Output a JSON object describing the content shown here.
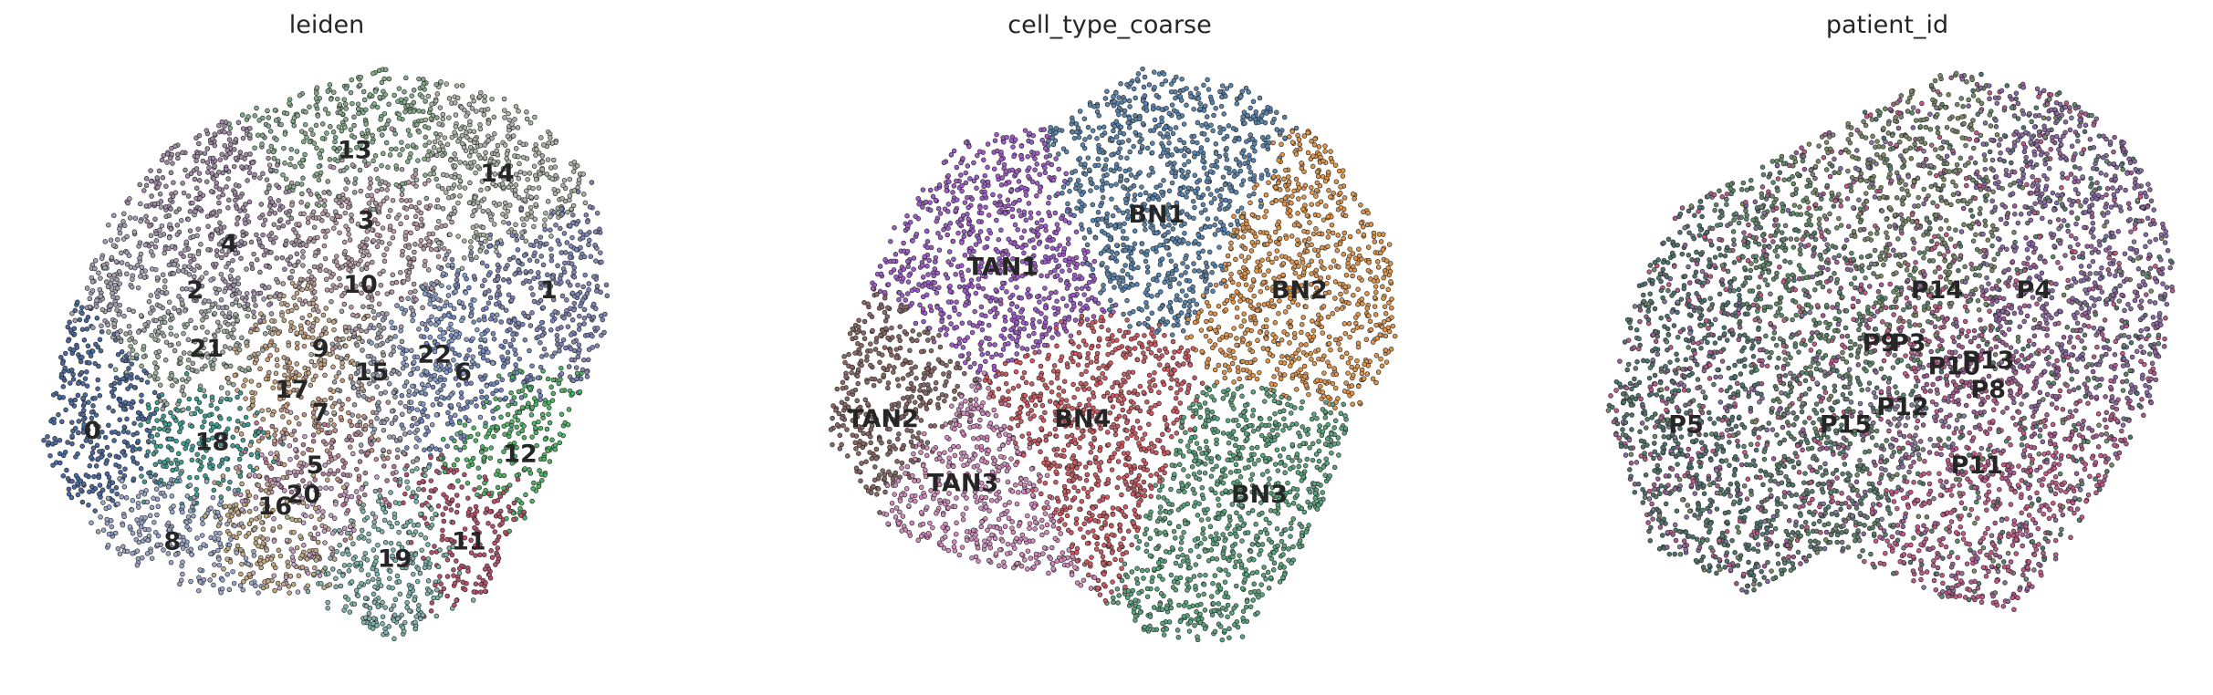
{
  "chart_data": [
    {
      "type": "scatter",
      "title": "leiden",
      "colors": {
        "0": "#4a6aa0",
        "1": "#7f86b5",
        "2": "#a7a0b5",
        "3": "#b79ba8",
        "4": "#a08aa5",
        "5": "#b07c94",
        "6": "#7388c0",
        "7": "#c09080",
        "8": "#9aa7c8",
        "9": "#c4a88a",
        "10": "#b49aa4",
        "11": "#b8526c",
        "12": "#4fb463",
        "13": "#85ac8b",
        "14": "#a9b3a6",
        "15": "#9a9fb0",
        "16": "#c3a882",
        "17": "#caa37c",
        "18": "#3f9e93",
        "19": "#7fb5ad",
        "20": "#c8a0c4",
        "21": "#9dae9e",
        "22": "#8aa0cc"
      },
      "clusters": [
        {
          "label": "0",
          "x": 0.09,
          "y": 0.62
        },
        {
          "label": "1",
          "x": 0.89,
          "y": 0.38
        },
        {
          "label": "2",
          "x": 0.27,
          "y": 0.38
        },
        {
          "label": "3",
          "x": 0.57,
          "y": 0.26
        },
        {
          "label": "4",
          "x": 0.33,
          "y": 0.3
        },
        {
          "label": "5",
          "x": 0.48,
          "y": 0.68
        },
        {
          "label": "6",
          "x": 0.74,
          "y": 0.52
        },
        {
          "label": "7",
          "x": 0.49,
          "y": 0.59
        },
        {
          "label": "8",
          "x": 0.23,
          "y": 0.81
        },
        {
          "label": "9",
          "x": 0.49,
          "y": 0.48
        },
        {
          "label": "10",
          "x": 0.56,
          "y": 0.37
        },
        {
          "label": "11",
          "x": 0.75,
          "y": 0.81
        },
        {
          "label": "12",
          "x": 0.84,
          "y": 0.66
        },
        {
          "label": "13",
          "x": 0.55,
          "y": 0.14
        },
        {
          "label": "14",
          "x": 0.8,
          "y": 0.18
        },
        {
          "label": "15",
          "x": 0.58,
          "y": 0.52
        },
        {
          "label": "16",
          "x": 0.41,
          "y": 0.75
        },
        {
          "label": "17",
          "x": 0.44,
          "y": 0.55
        },
        {
          "label": "18",
          "x": 0.3,
          "y": 0.64
        },
        {
          "label": "19",
          "x": 0.62,
          "y": 0.84
        },
        {
          "label": "20",
          "x": 0.46,
          "y": 0.73
        },
        {
          "label": "21",
          "x": 0.29,
          "y": 0.48
        },
        {
          "label": "22",
          "x": 0.69,
          "y": 0.49
        }
      ]
    },
    {
      "type": "scatter",
      "title": "cell_type_coarse",
      "colors": {
        "BN1": "#5a86b0",
        "BN2": "#e0954a",
        "BN3": "#5aa57e",
        "BN4": "#cf5a62",
        "TAN1": "#a05cc9",
        "TAN2": "#8a6866",
        "TAN3": "#d48cbf"
      },
      "clusters": [
        {
          "label": "BN1",
          "x": 0.58,
          "y": 0.25
        },
        {
          "label": "BN2",
          "x": 0.83,
          "y": 0.38
        },
        {
          "label": "BN3",
          "x": 0.76,
          "y": 0.73
        },
        {
          "label": "BN4",
          "x": 0.45,
          "y": 0.6
        },
        {
          "label": "TAN1",
          "x": 0.31,
          "y": 0.34
        },
        {
          "label": "TAN2",
          "x": 0.1,
          "y": 0.6
        },
        {
          "label": "TAN3",
          "x": 0.24,
          "y": 0.71
        }
      ]
    },
    {
      "type": "scatter",
      "title": "patient_id",
      "colors": {
        "P3": "#c25a86",
        "P4": "#8a6aa6",
        "P5": "#4f7370",
        "P8": "#b05a90",
        "P9": "#5e8a6a",
        "P10": "#a25a92",
        "P11": "#c35a8a",
        "P12": "#8a7aa0",
        "P13": "#9a5e9a",
        "P14": "#7a8a68",
        "P15": "#5c7f6c"
      },
      "clusters": [
        {
          "label": "P3",
          "x": 0.53,
          "y": 0.47
        },
        {
          "label": "P4",
          "x": 0.75,
          "y": 0.38
        },
        {
          "label": "P5",
          "x": 0.14,
          "y": 0.61
        },
        {
          "label": "P8",
          "x": 0.67,
          "y": 0.55
        },
        {
          "label": "P9",
          "x": 0.48,
          "y": 0.47
        },
        {
          "label": "P10",
          "x": 0.61,
          "y": 0.51
        },
        {
          "label": "P11",
          "x": 0.65,
          "y": 0.68
        },
        {
          "label": "P12",
          "x": 0.52,
          "y": 0.58
        },
        {
          "label": "P13",
          "x": 0.67,
          "y": 0.5
        },
        {
          "label": "P14",
          "x": 0.58,
          "y": 0.38
        },
        {
          "label": "P15",
          "x": 0.42,
          "y": 0.61
        }
      ]
    }
  ]
}
